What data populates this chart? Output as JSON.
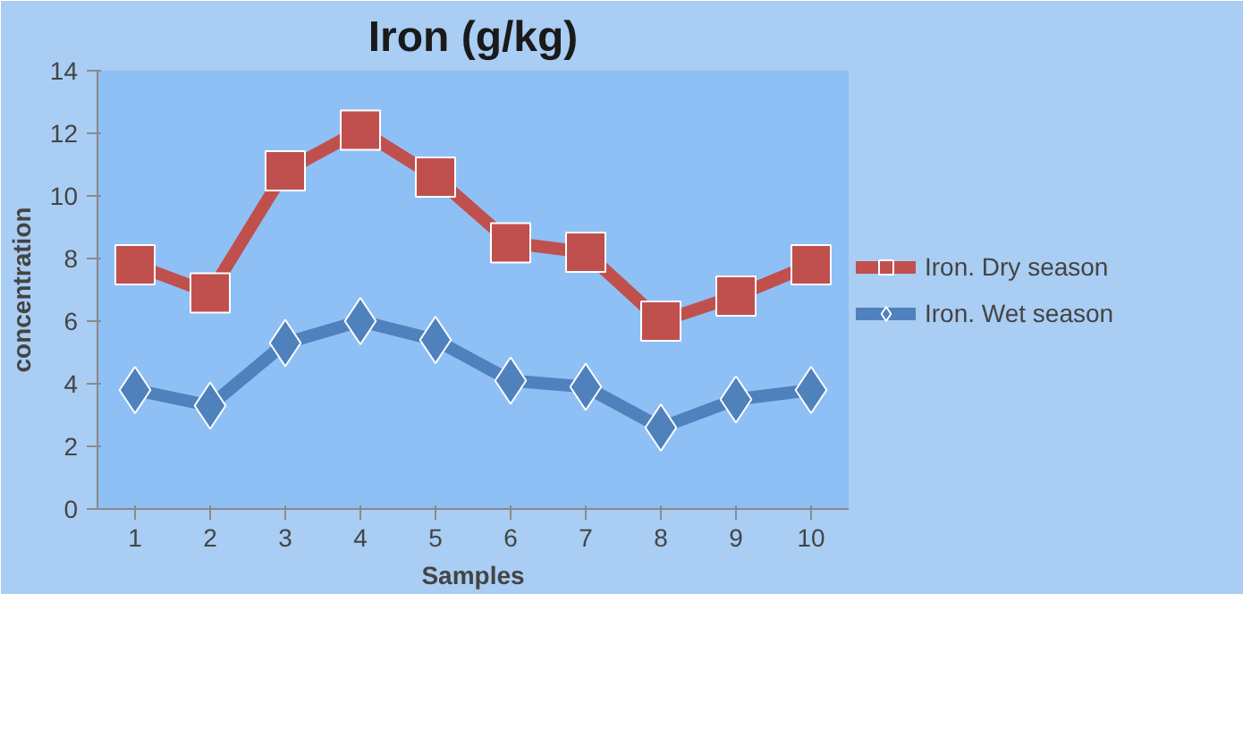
{
  "chart_data": {
    "type": "line",
    "title": "Iron (g/kg)",
    "xlabel": "Samples",
    "ylabel": "concentration",
    "categories": [
      "1",
      "2",
      "3",
      "4",
      "5",
      "6",
      "7",
      "8",
      "9",
      "10"
    ],
    "series": [
      {
        "name": "Iron. Dry season",
        "color": "#c0504d",
        "marker": "square",
        "values": [
          7.8,
          6.9,
          10.8,
          12.1,
          10.6,
          8.5,
          8.2,
          6.0,
          6.8,
          7.8
        ]
      },
      {
        "name": "Iron. Wet season",
        "color": "#4f81bd",
        "marker": "diamond",
        "values": [
          3.8,
          3.3,
          5.3,
          6.0,
          5.4,
          4.1,
          3.9,
          2.6,
          3.5,
          3.8
        ]
      }
    ],
    "ylim": [
      0,
      14
    ],
    "yticks": [
      0,
      2,
      4,
      6,
      8,
      10,
      12,
      14
    ],
    "grid": false,
    "legend": "right"
  }
}
